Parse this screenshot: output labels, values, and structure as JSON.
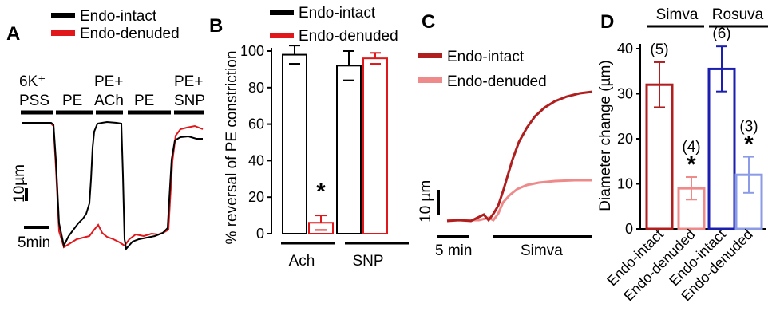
{
  "panels": {
    "A": {
      "label": "A",
      "legend": [
        {
          "name": "Endo-intact",
          "color": "#000000"
        },
        {
          "name": "Endo-denuded",
          "color": "#e0181b"
        }
      ],
      "protocol": [
        {
          "line1": "6K⁺",
          "line2": "PSS"
        },
        {
          "line1": "",
          "line2": "PE"
        },
        {
          "line1": "PE+",
          "line2": "ACh"
        },
        {
          "line1": "",
          "line2": "PE"
        },
        {
          "line1": "PE+",
          "line2": "SNP"
        }
      ],
      "scale_y": "10µm",
      "scale_x": "5min"
    },
    "B": {
      "label": "B"
    },
    "C": {
      "label": "C",
      "legend": [
        {
          "name": "Endo-intact",
          "color": "#b01e1e"
        },
        {
          "name": "Endo-denuded",
          "color": "#ee8a8a"
        }
      ],
      "scale_y": "10 µm",
      "scale_x": "5 min",
      "treatment": "Simva"
    },
    "D": {
      "label": "D"
    }
  },
  "chart_data": [
    {
      "panel": "B",
      "type": "bar",
      "groups": [
        "Ach",
        "SNP"
      ],
      "series": [
        {
          "name": "Endo-intact",
          "color": "#000000",
          "values": [
            98,
            92
          ],
          "errors": [
            5,
            8
          ]
        },
        {
          "name": "Endo-denuded",
          "color": "#e0181b",
          "values": [
            6,
            96
          ],
          "errors": [
            4,
            3
          ]
        }
      ],
      "ylabel": "% reversal of PE constriction",
      "ylim": [
        0,
        100
      ],
      "yticks": [
        0,
        20,
        40,
        60,
        80,
        100
      ],
      "significance": "*",
      "significance_on": "Endo-denuded / Ach"
    },
    {
      "panel": "D",
      "type": "bar",
      "group_labels": [
        "Simva",
        "Rosuva"
      ],
      "categories": [
        "Endo-intact",
        "Endo-denuded",
        "Endo-intact",
        "Endo-denuded"
      ],
      "values": [
        32,
        9,
        35.5,
        12
      ],
      "errors": [
        5,
        2.5,
        5,
        4
      ],
      "n": [
        "(5)",
        "(4)",
        "(6)",
        "(3)"
      ],
      "stars": [
        "",
        "*",
        "",
        "*"
      ],
      "colors": [
        "#b01e1e",
        "#ee8a8a",
        "#1b1fb0",
        "#8c9be6"
      ],
      "ylabel": "Diameter change (µm)",
      "ylim": [
        0,
        40
      ],
      "yticks": [
        0,
        10,
        20,
        30,
        40
      ]
    }
  ]
}
